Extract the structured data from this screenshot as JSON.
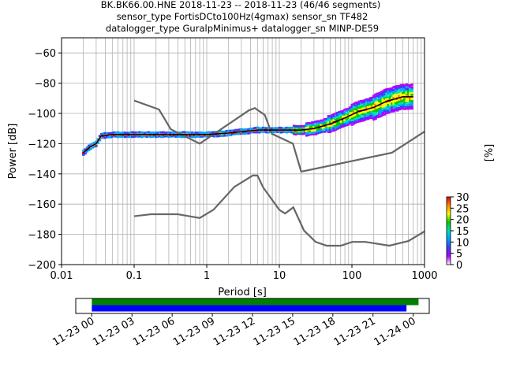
{
  "title": {
    "line1": "BK.BK66.00.HNE   2018-11-23 -- 2018-11-23  (46/46 segments)",
    "line2": "sensor_type FortisDCto100Hz(4gmax) sensor_sn TF482",
    "line3": "datalogger_type GuralpMinimus+ datalogger_sn MINP-DE59"
  },
  "chart_data": [
    {
      "type": "heatmap",
      "subtype": "probabilistic-power-spectral-density",
      "xlabel": "Period [s]",
      "ylabel": "Power [dB]",
      "xscale": "log",
      "xlim": [
        0.01,
        1000
      ],
      "ylim": [
        -200,
        -50
      ],
      "x_ticks": [
        "0.01",
        "0.1",
        "1",
        "10",
        "100",
        "1000"
      ],
      "y_ticks": [
        "−200",
        "−180",
        "−160",
        "−140",
        "−120",
        "−100",
        "−80",
        "−60"
      ],
      "grid": true,
      "colorbar": {
        "label": "[%]",
        "range": [
          0,
          30
        ],
        "ticks": [
          "0",
          "5",
          "10",
          "15",
          "20",
          "25",
          "30"
        ],
        "colormap": [
          "#ffffff",
          "#b200ff",
          "#3c3cff",
          "#00a0ff",
          "#00e0c0",
          "#00cc00",
          "#ffff00",
          "#ff8800",
          "#e00000"
        ]
      },
      "mode_curve": {
        "color": "#000000",
        "x": [
          0.02,
          0.025,
          0.03,
          0.035,
          0.05,
          0.1,
          0.3,
          1,
          2,
          5,
          8,
          12,
          20,
          30,
          50,
          80,
          120,
          200,
          300,
          500,
          700
        ],
        "y": [
          -126,
          -122,
          -120,
          -115,
          -114,
          -114,
          -114,
          -114,
          -113,
          -111,
          -111,
          -111,
          -111,
          -110,
          -107,
          -103,
          -99,
          -96,
          -92,
          -89,
          -89
        ]
      },
      "nhnm": {
        "color": "#666666",
        "x": [
          0.1,
          0.22,
          0.32,
          0.8,
          3.8,
          4.6,
          6.3,
          7.9,
          15.4,
          20,
          354.8,
          1000
        ],
        "y": [
          -91.5,
          -97.4,
          -110.5,
          -120,
          -98,
          -96.5,
          -101,
          -113.5,
          -120,
          -138.5,
          -126,
          -112
        ]
      },
      "nlnm": {
        "color": "#666666",
        "x": [
          0.1,
          0.17,
          0.4,
          0.8,
          1.24,
          2.4,
          4.3,
          5,
          6,
          10,
          12,
          15.6,
          21.9,
          31.6,
          45,
          70,
          101,
          154,
          328,
          600,
          1000
        ],
        "y": [
          -168,
          -166.7,
          -166.7,
          -169.2,
          -163.7,
          -148.6,
          -141.1,
          -141.1,
          -149,
          -163.8,
          -166.2,
          -162.1,
          -177.5,
          -185,
          -187.5,
          -187.5,
          -185,
          -185,
          -187.5,
          -184.4,
          -178
        ]
      }
    },
    {
      "type": "bar",
      "subtype": "data-coverage-timeline",
      "x_ticks": [
        "11-23 00",
        "11-23 03",
        "11-23 06",
        "11-23 09",
        "11-23 12",
        "11-23 15",
        "11-23 18",
        "11-23 21",
        "11-24 00"
      ],
      "xlim_hours": [
        -1.2,
        25.2
      ],
      "series": [
        {
          "color": "#008000",
          "start_hour": 0,
          "end_hour": 24.4
        },
        {
          "color": "#0000ff",
          "start_hour": 0,
          "end_hour": 23.5
        }
      ]
    }
  ]
}
